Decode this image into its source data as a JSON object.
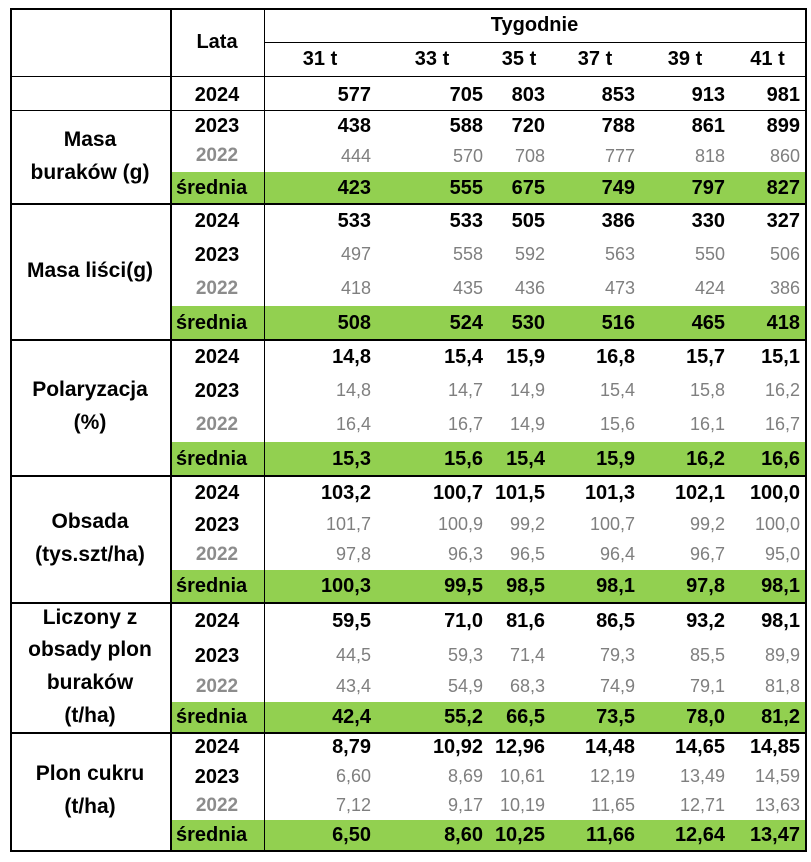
{
  "header": {
    "years_label": "Lata",
    "weeks_label": "Tygodnie",
    "weeks": [
      "31 t",
      "33 t",
      "35 t",
      "37 t",
      "39 t",
      "41 t"
    ]
  },
  "groups": [
    {
      "label": "Masa buraków (g)",
      "label_lines": [
        "Masa",
        "buraków (g)"
      ],
      "rows": [
        {
          "year": "2024",
          "values": [
            "577",
            "705",
            "803",
            "853",
            "913",
            "981"
          ],
          "style": "bold"
        },
        {
          "year": "2023",
          "values": [
            "438",
            "588",
            "720",
            "788",
            "861",
            "899"
          ],
          "style": "bold"
        },
        {
          "year": "2022",
          "values": [
            "444",
            "570",
            "708",
            "777",
            "818",
            "860"
          ],
          "style": "gray"
        },
        {
          "year": "średnia",
          "values": [
            "423",
            "555",
            "675",
            "749",
            "797",
            "827"
          ],
          "style": "avg"
        }
      ]
    },
    {
      "label": "Masa liści(g)",
      "label_lines": [
        "Masa liści(g)"
      ],
      "rows": [
        {
          "year": "2024",
          "values": [
            "533",
            "533",
            "505",
            "386",
            "330",
            "327"
          ],
          "style": "bold"
        },
        {
          "year": "2023",
          "values": [
            "497",
            "558",
            "592",
            "563",
            "550",
            "506"
          ],
          "style": "gray-boldyear"
        },
        {
          "year": "2022",
          "values": [
            "418",
            "435",
            "436",
            "473",
            "424",
            "386"
          ],
          "style": "gray"
        },
        {
          "year": "średnia",
          "values": [
            "508",
            "524",
            "530",
            "516",
            "465",
            "418"
          ],
          "style": "avg"
        }
      ]
    },
    {
      "label": "Polaryzacja (%)",
      "label_lines": [
        "Polaryzacja",
        "(%)"
      ],
      "rows": [
        {
          "year": "2024",
          "values": [
            "14,8",
            "15,4",
            "15,9",
            "16,8",
            "15,7",
            "15,1"
          ],
          "style": "bold"
        },
        {
          "year": "2023",
          "values": [
            "14,8",
            "14,7",
            "14,9",
            "15,4",
            "15,8",
            "16,2"
          ],
          "style": "gray-boldyear"
        },
        {
          "year": "2022",
          "values": [
            "16,4",
            "16,7",
            "14,9",
            "15,6",
            "16,1",
            "16,7"
          ],
          "style": "gray"
        },
        {
          "year": "średnia",
          "values": [
            "15,3",
            "15,6",
            "15,4",
            "15,9",
            "16,2",
            "16,6"
          ],
          "style": "avg"
        }
      ]
    },
    {
      "label": "Obsada (tys.szt/ha)",
      "label_lines": [
        "Obsada",
        "(tys.szt/ha)"
      ],
      "rows": [
        {
          "year": "2024",
          "values": [
            "103,2",
            "100,7",
            "101,5",
            "101,3",
            "102,1",
            "100,0"
          ],
          "style": "bold"
        },
        {
          "year": "2023",
          "values": [
            "101,7",
            "100,9",
            "99,2",
            "100,7",
            "99,2",
            "100,0"
          ],
          "style": "gray-boldyear"
        },
        {
          "year": "2022",
          "values": [
            "97,8",
            "96,3",
            "96,5",
            "96,4",
            "96,7",
            "95,0"
          ],
          "style": "gray"
        },
        {
          "year": "średnia",
          "values": [
            "100,3",
            "99,5",
            "98,5",
            "98,1",
            "97,8",
            "98,1"
          ],
          "style": "avg"
        }
      ]
    },
    {
      "label": "Liczony z obsady plon buraków (t/ha)",
      "label_lines": [
        "Liczony z",
        "obsady plon",
        "buraków",
        "(t/ha)"
      ],
      "rows": [
        {
          "year": "2024",
          "values": [
            "59,5",
            "71,0",
            "81,6",
            "86,5",
            "93,2",
            "98,1"
          ],
          "style": "bold"
        },
        {
          "year": "2023",
          "values": [
            "44,5",
            "59,3",
            "71,4",
            "79,3",
            "85,5",
            "89,9"
          ],
          "style": "gray-boldyear"
        },
        {
          "year": "2022",
          "values": [
            "43,4",
            "54,9",
            "68,3",
            "74,9",
            "79,1",
            "81,8"
          ],
          "style": "gray"
        },
        {
          "year": "średnia",
          "values": [
            "42,4",
            "55,2",
            "66,5",
            "73,5",
            "78,0",
            "81,2"
          ],
          "style": "avg"
        }
      ]
    },
    {
      "label": "Plon cukru (t/ha)",
      "label_lines": [
        "Plon cukru",
        "(t/ha)"
      ],
      "rows": [
        {
          "year": "2024",
          "values": [
            "8,79",
            "10,92",
            "12,96",
            "14,48",
            "14,65",
            "14,85"
          ],
          "style": "bold"
        },
        {
          "year": "2023",
          "values": [
            "6,60",
            "8,69",
            "10,61",
            "12,19",
            "13,49",
            "14,59"
          ],
          "style": "gray-boldyear"
        },
        {
          "year": "2022",
          "values": [
            "7,12",
            "9,17",
            "10,19",
            "11,65",
            "12,71",
            "13,63"
          ],
          "style": "gray"
        },
        {
          "year": "średnia",
          "values": [
            "6,50",
            "8,60",
            "10,25",
            "11,66",
            "12,64",
            "13,47"
          ],
          "style": "avg"
        }
      ]
    }
  ],
  "colors": {
    "average_row_bg": "#92d050",
    "gray_text": "#7f7f7f",
    "border": "#000000"
  }
}
